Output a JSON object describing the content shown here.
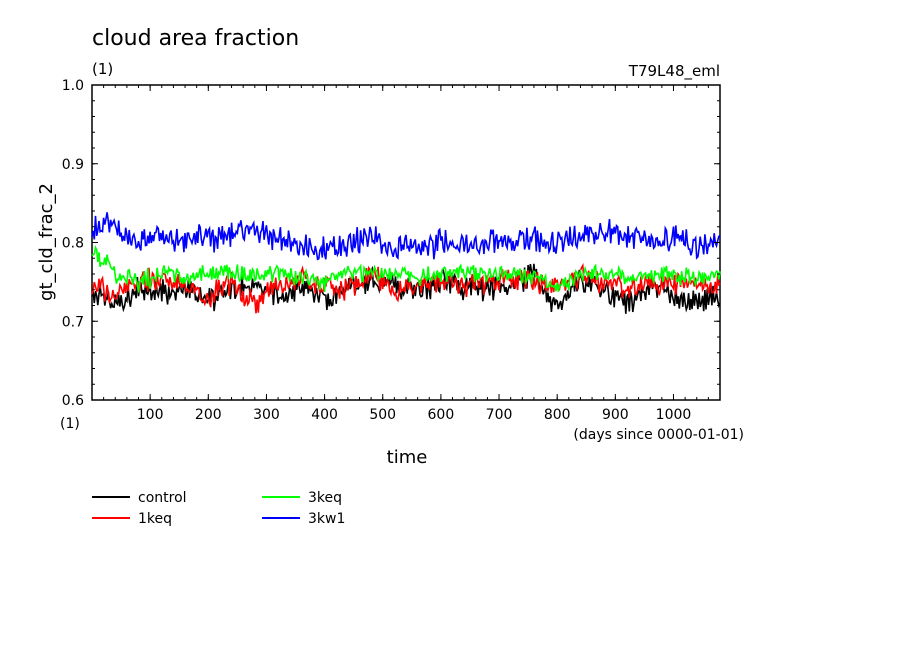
{
  "chart_data": {
    "type": "line",
    "title": "cloud area fraction",
    "units": "(1)",
    "top_right_label": "T79L48_eml",
    "ylabel": "gt_cld_frac_2",
    "yunits": "(1)",
    "xlabel": "time",
    "xunits": "(days since 0000-01-01)",
    "xlim": [
      0,
      1080
    ],
    "ylim": [
      0.6,
      1.0
    ],
    "xticks": [
      100,
      200,
      300,
      400,
      500,
      600,
      700,
      800,
      900,
      1000
    ],
    "yticks": [
      "0.6",
      "0.7",
      "0.8",
      "0.9",
      "1.0"
    ],
    "x_tick_labels": [
      "100",
      "200",
      "300",
      "400",
      "500",
      "600",
      "700",
      "800",
      "900",
      "1000"
    ],
    "grid": false,
    "legend_position": "bottom-left",
    "x": [
      0,
      40,
      80,
      120,
      160,
      200,
      240,
      280,
      320,
      360,
      400,
      440,
      480,
      520,
      560,
      600,
      640,
      680,
      720,
      760,
      800,
      840,
      880,
      920,
      960,
      1000,
      1040,
      1080
    ],
    "series": [
      {
        "name": "control",
        "color": "#000000",
        "values": [
          0.735,
          0.72,
          0.74,
          0.735,
          0.745,
          0.725,
          0.74,
          0.75,
          0.73,
          0.745,
          0.725,
          0.74,
          0.755,
          0.745,
          0.74,
          0.75,
          0.745,
          0.74,
          0.745,
          0.76,
          0.72,
          0.75,
          0.74,
          0.725,
          0.745,
          0.735,
          0.725,
          0.73
        ]
      },
      {
        "name": "1keq",
        "color": "#ff0000",
        "values": [
          0.745,
          0.735,
          0.75,
          0.755,
          0.745,
          0.73,
          0.75,
          0.72,
          0.745,
          0.755,
          0.745,
          0.74,
          0.76,
          0.74,
          0.745,
          0.75,
          0.745,
          0.75,
          0.755,
          0.75,
          0.745,
          0.755,
          0.75,
          0.74,
          0.745,
          0.75,
          0.745,
          0.745
        ]
      },
      {
        "name": "3keq",
        "color": "#00ff00",
        "values": [
          0.79,
          0.76,
          0.75,
          0.76,
          0.755,
          0.76,
          0.765,
          0.755,
          0.76,
          0.755,
          0.75,
          0.76,
          0.765,
          0.76,
          0.755,
          0.76,
          0.765,
          0.76,
          0.765,
          0.755,
          0.74,
          0.76,
          0.765,
          0.755,
          0.76,
          0.76,
          0.755,
          0.76
        ]
      },
      {
        "name": "3kw1",
        "color": "#0000ff",
        "values": [
          0.815,
          0.82,
          0.8,
          0.81,
          0.8,
          0.805,
          0.81,
          0.82,
          0.805,
          0.8,
          0.79,
          0.795,
          0.81,
          0.79,
          0.795,
          0.8,
          0.795,
          0.8,
          0.8,
          0.81,
          0.795,
          0.81,
          0.815,
          0.81,
          0.8,
          0.805,
          0.795,
          0.8
        ]
      }
    ]
  }
}
